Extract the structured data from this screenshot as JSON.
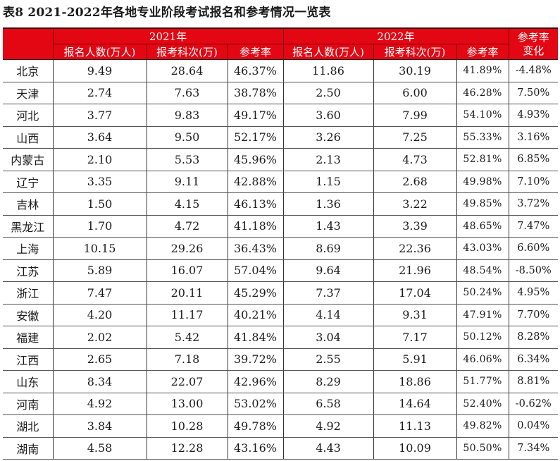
{
  "title": "表8  2021-2022年各地专业阶段考试报名和参考情况一览表",
  "header": {
    "year_2021": "2021年",
    "year_2022": "2022年",
    "change_label": "参考率变化",
    "change_line1": "参考率",
    "change_line2": "变化",
    "columns_2021": [
      "报名人数(万人)",
      "报考科次(万)",
      "参考率"
    ],
    "columns_2022": [
      "报名人数(万人)",
      "报考科次(万)",
      "参考率"
    ]
  },
  "colors": {
    "header_bg": "#e30613",
    "header_text": "#ffffff"
  },
  "rows": [
    {
      "region": "北京",
      "reg_2021": "9.49",
      "subj_2021": "28.64",
      "rate_2021": "46.37%",
      "reg_2022": "11.86",
      "subj_2022": "30.19",
      "rate_2022": "41.89%",
      "change": "-4.48%"
    },
    {
      "region": "天津",
      "reg_2021": "2.74",
      "subj_2021": "7.63",
      "rate_2021": "38.78%",
      "reg_2022": "2.50",
      "subj_2022": "6.00",
      "rate_2022": "46.28%",
      "change": "7.50%"
    },
    {
      "region": "河北",
      "reg_2021": "3.77",
      "subj_2021": "9.83",
      "rate_2021": "49.17%",
      "reg_2022": "3.60",
      "subj_2022": "7.99",
      "rate_2022": "54.10%",
      "change": "4.93%"
    },
    {
      "region": "山西",
      "reg_2021": "3.64",
      "subj_2021": "9.50",
      "rate_2021": "52.17%",
      "reg_2022": "3.26",
      "subj_2022": "7.25",
      "rate_2022": "55.33%",
      "change": "3.16%"
    },
    {
      "region": "内蒙古",
      "reg_2021": "2.10",
      "subj_2021": "5.53",
      "rate_2021": "45.96%",
      "reg_2022": "2.13",
      "subj_2022": "4.73",
      "rate_2022": "52.81%",
      "change": "6.85%"
    },
    {
      "region": "辽宁",
      "reg_2021": "3.35",
      "subj_2021": "9.11",
      "rate_2021": "42.88%",
      "reg_2022": "1.15",
      "subj_2022": "2.68",
      "rate_2022": "49.98%",
      "change": "7.10%"
    },
    {
      "region": "吉林",
      "reg_2021": "1.50",
      "subj_2021": "4.15",
      "rate_2021": "46.13%",
      "reg_2022": "1.36",
      "subj_2022": "3.22",
      "rate_2022": "49.85%",
      "change": "3.72%"
    },
    {
      "region": "黑龙江",
      "reg_2021": "1.70",
      "subj_2021": "4.72",
      "rate_2021": "41.18%",
      "reg_2022": "1.43",
      "subj_2022": "3.39",
      "rate_2022": "48.65%",
      "change": "7.47%"
    },
    {
      "region": "上海",
      "reg_2021": "10.15",
      "subj_2021": "29.26",
      "rate_2021": "36.43%",
      "reg_2022": "8.69",
      "subj_2022": "22.36",
      "rate_2022": "43.03%",
      "change": "6.60%"
    },
    {
      "region": "江苏",
      "reg_2021": "5.89",
      "subj_2021": "16.07",
      "rate_2021": "57.04%",
      "reg_2022": "9.64",
      "subj_2022": "21.96",
      "rate_2022": "48.54%",
      "change": "-8.50%"
    },
    {
      "region": "浙江",
      "reg_2021": "7.47",
      "subj_2021": "20.11",
      "rate_2021": "45.29%",
      "reg_2022": "7.37",
      "subj_2022": "17.04",
      "rate_2022": "50.24%",
      "change": "4.95%"
    },
    {
      "region": "安徽",
      "reg_2021": "4.20",
      "subj_2021": "11.17",
      "rate_2021": "40.21%",
      "reg_2022": "4.14",
      "subj_2022": "9.31",
      "rate_2022": "47.91%",
      "change": "7.70%"
    },
    {
      "region": "福建",
      "reg_2021": "2.02",
      "subj_2021": "5.42",
      "rate_2021": "41.84%",
      "reg_2022": "3.04",
      "subj_2022": "7.17",
      "rate_2022": "50.12%",
      "change": "8.28%"
    },
    {
      "region": "江西",
      "reg_2021": "2.65",
      "subj_2021": "7.18",
      "rate_2021": "39.72%",
      "reg_2022": "2.55",
      "subj_2022": "5.91",
      "rate_2022": "46.06%",
      "change": "6.34%"
    },
    {
      "region": "山东",
      "reg_2021": "8.34",
      "subj_2021": "22.07",
      "rate_2021": "42.96%",
      "reg_2022": "8.29",
      "subj_2022": "18.86",
      "rate_2022": "51.77%",
      "change": "8.81%"
    },
    {
      "region": "河南",
      "reg_2021": "4.92",
      "subj_2021": "13.00",
      "rate_2021": "53.02%",
      "reg_2022": "6.58",
      "subj_2022": "14.64",
      "rate_2022": "52.40%",
      "change": "-0.62%"
    },
    {
      "region": "湖北",
      "reg_2021": "3.84",
      "subj_2021": "10.28",
      "rate_2021": "49.78%",
      "reg_2022": "4.92",
      "subj_2022": "11.13",
      "rate_2022": "49.82%",
      "change": "0.04%"
    },
    {
      "region": "湖南",
      "reg_2021": "4.58",
      "subj_2021": "12.28",
      "rate_2021": "43.16%",
      "reg_2022": "4.43",
      "subj_2022": "10.09",
      "rate_2022": "50.50%",
      "change": "7.34%"
    }
  ]
}
